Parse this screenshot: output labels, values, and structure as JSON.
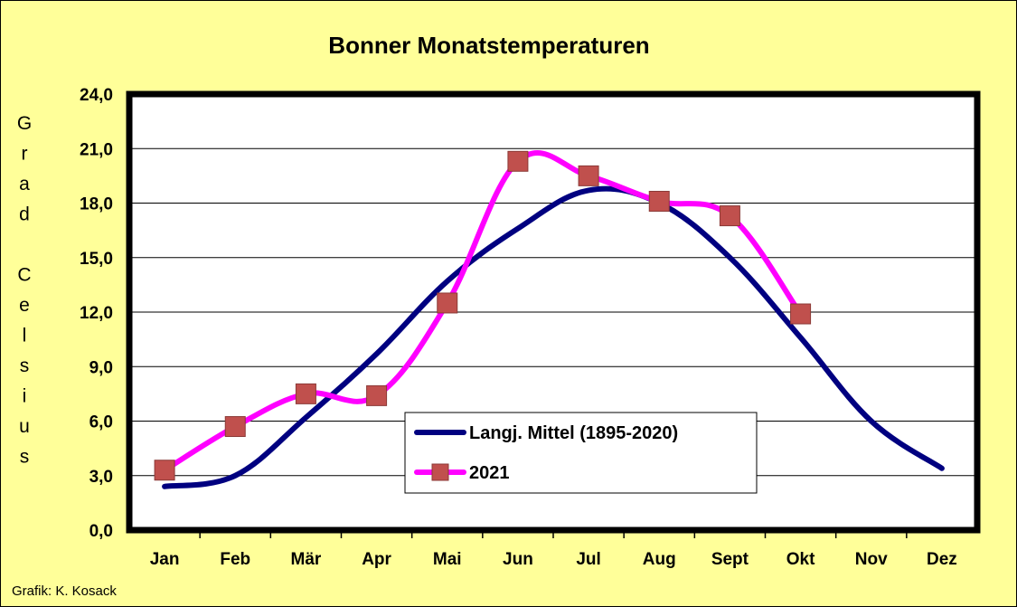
{
  "chart_data": {
    "type": "line",
    "title": "Bonner Monatstemperaturen",
    "ylabel": "Grad Celsius",
    "xlabel": "",
    "categories": [
      "Jan",
      "Feb",
      "Mär",
      "Apr",
      "Mai",
      "Jun",
      "Jul",
      "Aug",
      "Sept",
      "Okt",
      "Nov",
      "Dez"
    ],
    "ylim": [
      0,
      24
    ],
    "yticks": [
      "0,0",
      "3,0",
      "6,0",
      "9,0",
      "12,0",
      "15,0",
      "18,0",
      "21,0",
      "24,0"
    ],
    "grid": true,
    "legend_position": "center-right",
    "series": [
      {
        "name": "Langj. Mittel (1895-2020)",
        "color": "#000080",
        "marker": "none",
        "values": [
          2.4,
          3.0,
          6.2,
          9.7,
          13.7,
          16.6,
          18.7,
          18.0,
          15.0,
          10.6,
          6.0,
          3.4
        ]
      },
      {
        "name": "2021",
        "color": "#ff00ff",
        "marker": "square",
        "marker_color": "#c0504d",
        "values": [
          3.3,
          5.7,
          7.5,
          7.4,
          12.5,
          20.3,
          19.5,
          18.1,
          17.3,
          11.9,
          null,
          null
        ]
      }
    ]
  },
  "credit": "Grafik:  K. Kosack",
  "colors": {
    "background": "#ffff99",
    "plot_area": "#ffffff",
    "grid": "#000000"
  }
}
